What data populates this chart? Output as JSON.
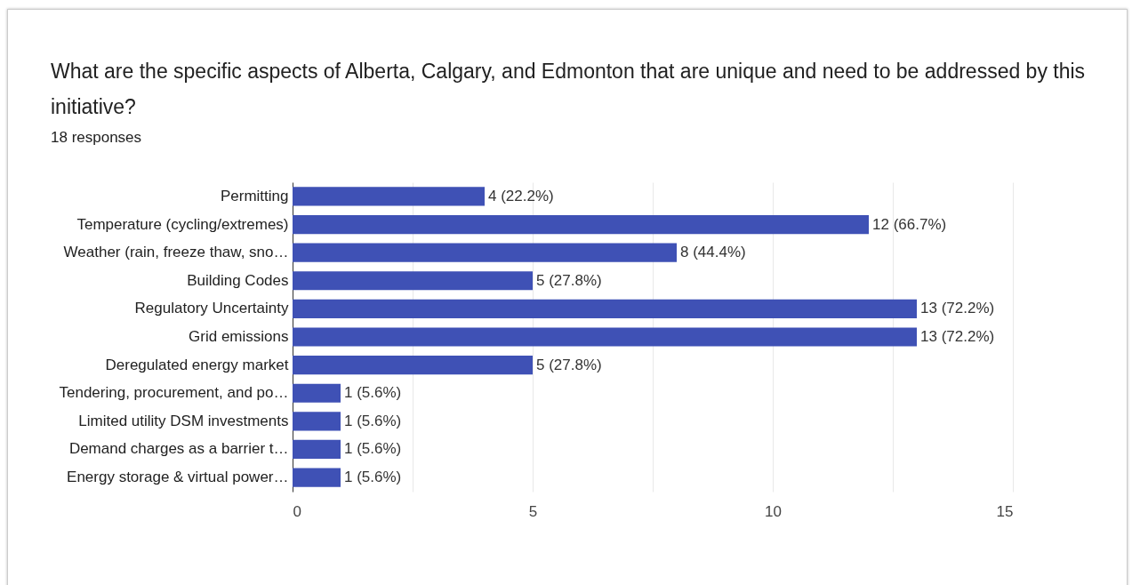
{
  "chart_data": {
    "type": "bar",
    "orientation": "horizontal",
    "title": "What are the specific aspects of Alberta, Calgary, and Edmonton that are unique and need to be addressed by this initiative?",
    "subtitle": "18 responses",
    "categories": [
      "Permitting",
      "Temperature (cycling/extremes)",
      "Weather (rain, freeze thaw, sno…",
      "Building Codes",
      "Regulatory Uncertainty",
      "Grid emissions",
      "Deregulated energy market",
      "Tendering, procurement, and po…",
      "Limited utility DSM investments",
      "Demand charges as a barrier t…",
      "Energy storage & virtual power…"
    ],
    "values": [
      4,
      12,
      8,
      5,
      13,
      13,
      5,
      1,
      1,
      1,
      1
    ],
    "value_labels": [
      "4 (22.2%)",
      "12 (66.7%)",
      "8 (44.4%)",
      "5 (27.8%)",
      "13 (72.2%)",
      "13 (72.2%)",
      "5 (27.8%)",
      "1 (5.6%)",
      "1 (5.6%)",
      "1 (5.6%)",
      "1 (5.6%)"
    ],
    "color": "#3f51b5",
    "xlim": [
      0,
      15
    ],
    "xticks": [
      0,
      {
        "value": 2.5,
        "label": null
      },
      5,
      {
        "value": 7.5,
        "label": null
      },
      10,
      {
        "value": 12.5,
        "label": null
      },
      15
    ],
    "grid": true
  }
}
